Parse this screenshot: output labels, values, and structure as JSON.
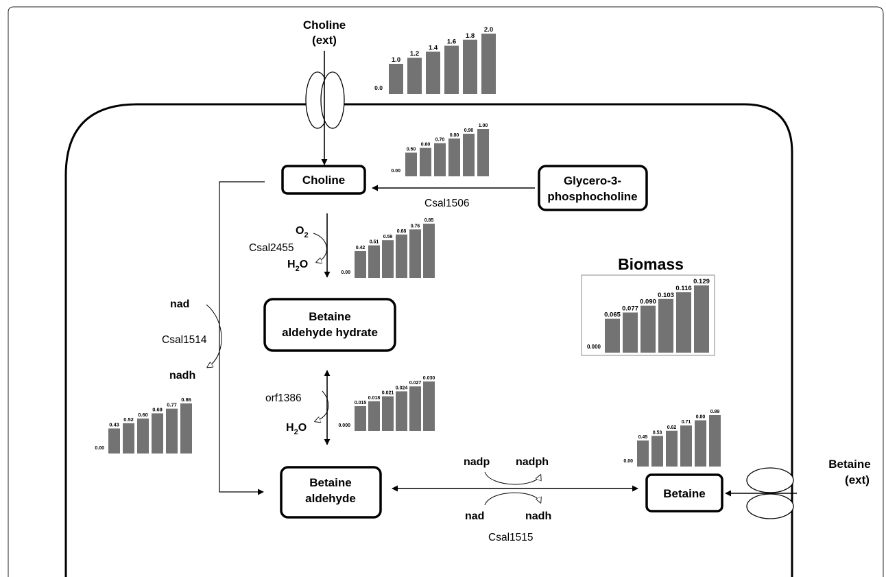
{
  "nodes": {
    "choline_ext": [
      "Choline",
      "(ext)"
    ],
    "choline": [
      "Choline"
    ],
    "glycero": [
      "Glycero-3-",
      "phosphocholine"
    ],
    "betaine_aldehyde_hydrate": [
      "Betaine",
      "aldehyde hydrate"
    ],
    "betaine_aldehyde": [
      "Betaine",
      "aldehyde"
    ],
    "betaine": [
      "Betaine"
    ],
    "betaine_ext": [
      "Betaine",
      "(ext)"
    ]
  },
  "enzymes": {
    "csal1506": "Csal1506",
    "csal2455": "Csal2455",
    "csal1514": "Csal1514",
    "orf1386": "orf1386",
    "csal1515": "Csal1515"
  },
  "cofactors": {
    "o2": {
      "base": "O",
      "sub": "2"
    },
    "h2o_top": {
      "base": "H",
      "sub": "2",
      "tail": "O"
    },
    "h2o_mid": {
      "base": "H",
      "sub": "2",
      "tail": "O"
    },
    "nad_left": "nad",
    "nadh_left": "nadh",
    "nadp": "nadp",
    "nadph": "nadph",
    "nad_bottom": "nad",
    "nadh_bottom": "nadh"
  },
  "biomass_title": "Biomass",
  "chart_data": [
    {
      "type": "bar",
      "name": "choline-uptake-flux",
      "zero_label": "0.0",
      "values": [
        1.0,
        1.2,
        1.4,
        1.6,
        1.8,
        2.0
      ],
      "labels": [
        "1.0",
        "1.2",
        "1.4",
        "1.6",
        "1.8",
        "2.0"
      ]
    },
    {
      "type": "bar",
      "name": "csal1506-flux",
      "zero_label": "0.00",
      "values": [
        0.5,
        0.6,
        0.7,
        0.8,
        0.9,
        1.0
      ],
      "labels": [
        "0.50",
        "0.60",
        "0.70",
        "0.80",
        "0.90",
        "1.00"
      ]
    },
    {
      "type": "bar",
      "name": "csal2455-flux",
      "zero_label": "0.00",
      "values": [
        0.42,
        0.51,
        0.59,
        0.68,
        0.76,
        0.85
      ],
      "labels": [
        "0.42",
        "0.51",
        "0.59",
        "0.68",
        "0.76",
        "0.85"
      ]
    },
    {
      "type": "bar",
      "name": "biomass-flux",
      "zero_label": "0.000",
      "values": [
        0.065,
        0.077,
        0.09,
        0.103,
        0.116,
        0.129
      ],
      "labels": [
        "0.065",
        "0.077",
        "0.090",
        "0.103",
        "0.116",
        "0.129"
      ]
    },
    {
      "type": "bar",
      "name": "csal1514-flux",
      "zero_label": "0.00",
      "values": [
        0.43,
        0.52,
        0.6,
        0.69,
        0.77,
        0.86
      ],
      "labels": [
        "0.43",
        "0.52",
        "0.60",
        "0.69",
        "0.77",
        "0.86"
      ]
    },
    {
      "type": "bar",
      "name": "orf1386-flux",
      "zero_label": "0.000",
      "values": [
        0.015,
        0.018,
        0.021,
        0.024,
        0.027,
        0.03
      ],
      "labels": [
        "0.015",
        "0.018",
        "0.021",
        "0.024",
        "0.027",
        "0.030"
      ]
    },
    {
      "type": "bar",
      "name": "betaine-flux",
      "zero_label": "0.00",
      "values": [
        0.45,
        0.53,
        0.62,
        0.71,
        0.8,
        0.89
      ],
      "labels": [
        "0.45",
        "0.53",
        "0.62",
        "0.71",
        "0.80",
        "0.89"
      ]
    }
  ]
}
